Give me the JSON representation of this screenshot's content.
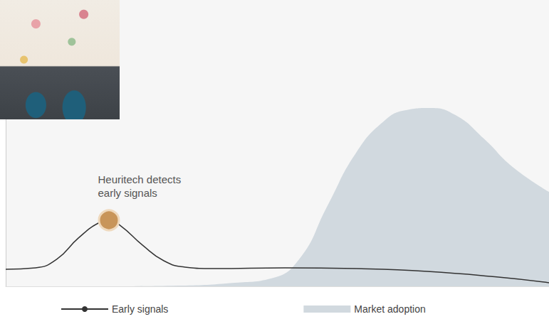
{
  "chart_data": {
    "type": "line",
    "annotation": "Heuritech detects early signals",
    "xlim": [
      0,
      100
    ],
    "ylim": [
      0,
      100
    ],
    "tick_labels": false,
    "grid": false,
    "legend": "bottom",
    "series": [
      {
        "name": "Early signals",
        "type": "line",
        "color": "#333333",
        "x": [
          0,
          5.5,
          9.4,
          13.4,
          17.3,
          19,
          21.2,
          25.2,
          29.1,
          33,
          38.3,
          51.4,
          64.5,
          77.6,
          90.7,
          100
        ],
        "values": [
          8,
          8.7,
          12.7,
          22.7,
          30,
          31,
          28.3,
          19.3,
          12,
          9,
          8.3,
          8.7,
          8.3,
          7,
          4.3,
          1.7
        ]
      },
      {
        "name": "Market adoption",
        "type": "area",
        "color": "#d1d9df",
        "x": [
          0,
          20,
          31.7,
          42.2,
          48.8,
          54,
          59.2,
          64.5,
          69.7,
          73.7,
          78,
          82.8,
          88,
          93.3,
          100
        ],
        "values": [
          0,
          0,
          0.3,
          1.7,
          3.7,
          12.7,
          37.7,
          62.7,
          77.7,
          82.7,
          83.7,
          80.3,
          69.3,
          56,
          44.3
        ]
      }
    ]
  }
}
